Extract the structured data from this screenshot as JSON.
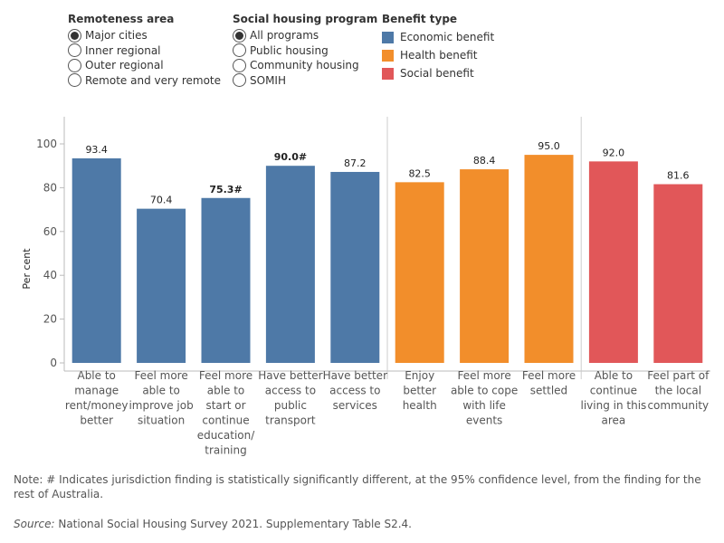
{
  "filters": {
    "remoteness": {
      "title": "Remoteness area",
      "options": [
        "Major cities",
        "Inner regional",
        "Outer regional",
        "Remote and very remote"
      ],
      "selected_index": 0
    },
    "program": {
      "title": "Social housing program",
      "options": [
        "All programs",
        "Public housing",
        "Community housing",
        "SOMIH"
      ],
      "selected_index": 0
    },
    "benefit_legend": {
      "title": "Benefit type",
      "items": [
        {
          "label": "Economic benefit",
          "color": "#4e79a7"
        },
        {
          "label": "Health benefit",
          "color": "#f28e2b"
        },
        {
          "label": "Social benefit",
          "color": "#e15759"
        }
      ]
    }
  },
  "chart_data": {
    "type": "bar",
    "ylabel": "Per cent",
    "ylim": [
      0,
      100
    ],
    "yticks": [
      0,
      20,
      40,
      60,
      80,
      100
    ],
    "grid": false,
    "categories": [
      {
        "label_lines": [
          "Able to",
          "manage",
          "rent/money",
          "better"
        ],
        "value": 93.4,
        "value_label": "93.4",
        "group": "Economic benefit",
        "bold": false
      },
      {
        "label_lines": [
          "Feel more",
          "able to",
          "improve job",
          "situation"
        ],
        "value": 70.4,
        "value_label": "70.4",
        "group": "Economic benefit",
        "bold": false
      },
      {
        "label_lines": [
          "Feel more",
          "able to",
          "start or",
          "continue",
          "education/",
          "training"
        ],
        "value": 75.3,
        "value_label": "75.3#",
        "group": "Economic benefit",
        "bold": true
      },
      {
        "label_lines": [
          "Have better",
          "access to",
          "public",
          "transport"
        ],
        "value": 90.0,
        "value_label": "90.0#",
        "group": "Economic benefit",
        "bold": true
      },
      {
        "label_lines": [
          "Have better",
          "access to",
          "services"
        ],
        "value": 87.2,
        "value_label": "87.2",
        "group": "Economic benefit",
        "bold": false
      },
      {
        "label_lines": [
          "Enjoy",
          "better",
          "health"
        ],
        "value": 82.5,
        "value_label": "82.5",
        "group": "Health benefit",
        "bold": false
      },
      {
        "label_lines": [
          "Feel more",
          "able to cope",
          "with life",
          "events"
        ],
        "value": 88.4,
        "value_label": "88.4",
        "group": "Health benefit",
        "bold": false
      },
      {
        "label_lines": [
          "Feel more",
          "settled"
        ],
        "value": 95.0,
        "value_label": "95.0",
        "group": "Health benefit",
        "bold": false
      },
      {
        "label_lines": [
          "Able to",
          "continue",
          "living in this",
          "area"
        ],
        "value": 92.0,
        "value_label": "92.0",
        "group": "Social benefit",
        "bold": false
      },
      {
        "label_lines": [
          "Feel part of",
          "the local",
          "community"
        ],
        "value": 81.6,
        "value_label": "81.6",
        "group": "Social benefit",
        "bold": false
      }
    ]
  },
  "footer": {
    "note": "Note: # Indicates jurisdiction finding is statistically significantly different, at the 95% confidence level, from the finding for the rest of Australia.",
    "source_label": "Source:",
    "source_text": " National Social Housing Survey 2021. Supplementary Table S2.4."
  }
}
